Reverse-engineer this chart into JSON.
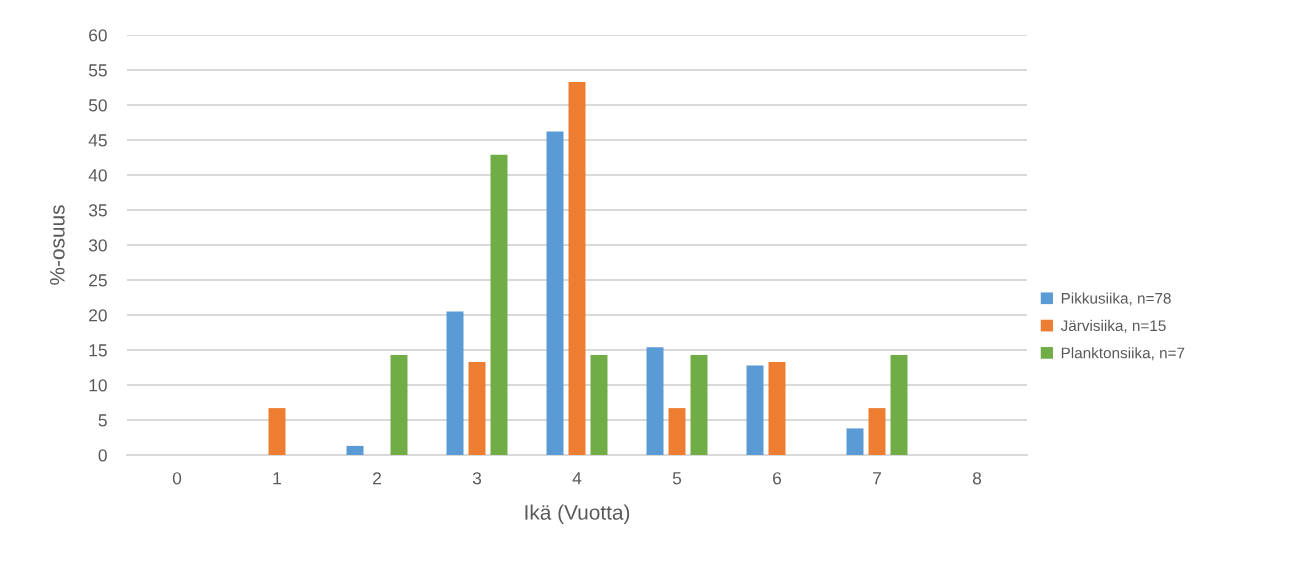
{
  "chart_data": {
    "type": "bar",
    "xlabel": "Ikä (Vuotta)",
    "ylabel": "%-osuus",
    "categories": [
      "0",
      "1",
      "2",
      "3",
      "4",
      "5",
      "6",
      "7",
      "8"
    ],
    "series": [
      {
        "name": "Pikkusiika, n=78",
        "color": "#5b9bd5",
        "values": [
          null,
          null,
          1.3,
          20.5,
          46.2,
          15.4,
          12.8,
          3.8,
          null
        ]
      },
      {
        "name": "Järvisiika, n=15",
        "color": "#ed7d31",
        "values": [
          null,
          6.7,
          null,
          13.3,
          53.3,
          6.7,
          13.3,
          6.7,
          null
        ]
      },
      {
        "name": "Planktonsiika, n=7",
        "color": "#70ad47",
        "values": [
          null,
          null,
          14.3,
          42.9,
          14.3,
          14.3,
          null,
          14.3,
          null
        ]
      }
    ],
    "ylim": [
      0,
      60
    ],
    "yticks": [
      0,
      5,
      10,
      15,
      20,
      25,
      30,
      35,
      40,
      45,
      50,
      55,
      60
    ],
    "grid": "y",
    "legend": "right"
  }
}
